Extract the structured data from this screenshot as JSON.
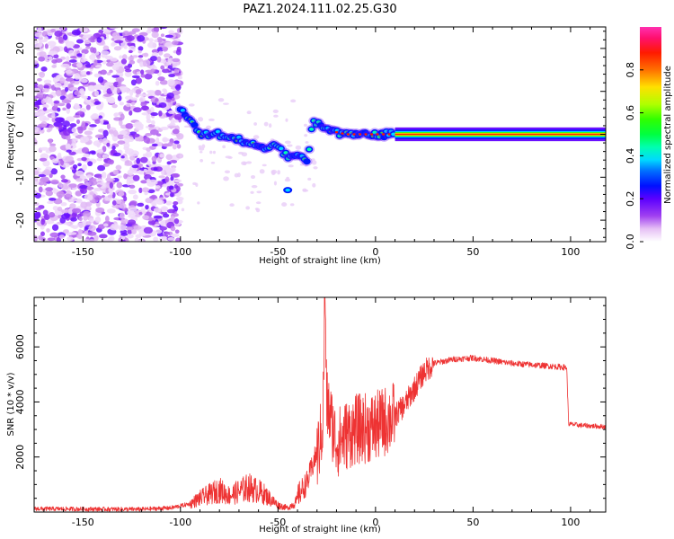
{
  "figure": {
    "title": "PAZ1.2024.111.02.25.G30"
  },
  "chart_data": [
    {
      "type": "heatmap",
      "xlabel": "Height of straight line (km)",
      "ylabel": "Frequency (Hz)",
      "xlim": [
        -175,
        118
      ],
      "ylim": [
        -25,
        25
      ],
      "xticks": [
        -150,
        -100,
        -50,
        0,
        50,
        100
      ],
      "yticks": [
        -20,
        -10,
        0,
        10,
        20
      ],
      "colorbar": {
        "label": "Normalized spectral amplitude",
        "range": [
          0,
          1
        ],
        "ticks": [
          0.0,
          0.2,
          0.4,
          0.6,
          0.8
        ],
        "colormap": "gist_ncar_r"
      },
      "ridge": {
        "description_points_km_hz": [
          [
            -100,
            6
          ],
          [
            -90,
            0
          ],
          [
            -80,
            0
          ],
          [
            -70,
            -1
          ],
          [
            -60,
            -3
          ],
          [
            -50,
            -3
          ],
          [
            -45,
            -5
          ],
          [
            -40,
            -5
          ],
          [
            -35,
            -6
          ],
          [
            -32,
            3
          ],
          [
            -25,
            1
          ],
          [
            -15,
            0
          ],
          [
            -5,
            0
          ],
          [
            10,
            0
          ],
          [
            50,
            0
          ],
          [
            118,
            0
          ]
        ],
        "tone_start_km": 10
      }
    },
    {
      "type": "line",
      "xlabel": "Height of straight line (km)",
      "ylabel": "SNR (10 * v/v)",
      "xlim": [
        -175,
        118
      ],
      "ylim": [
        0,
        7800
      ],
      "xticks": [
        -150,
        -100,
        -50,
        0,
        50,
        100
      ],
      "yticks": [
        2000,
        4000,
        6000
      ],
      "color": "#ee3333",
      "series": [
        {
          "x": [
            -175,
            -150,
            -120,
            -105,
            -95,
            -90,
            -80,
            -75,
            -65,
            -58,
            -50,
            -45,
            -40,
            -35,
            -30,
            -27,
            -26,
            -25,
            -20,
            -15,
            -10,
            0,
            10,
            15,
            20,
            25,
            30,
            40,
            50,
            60,
            70,
            80,
            90,
            98,
            99,
            105,
            118
          ],
          "y": [
            120,
            110,
            100,
            150,
            300,
            500,
            800,
            600,
            900,
            700,
            250,
            150,
            400,
            900,
            2000,
            3200,
            7800,
            4000,
            2500,
            2800,
            3000,
            3100,
            3500,
            3900,
            4500,
            5100,
            5400,
            5550,
            5600,
            5500,
            5400,
            5350,
            5300,
            5250,
            3200,
            3150,
            3100
          ]
        }
      ]
    }
  ]
}
